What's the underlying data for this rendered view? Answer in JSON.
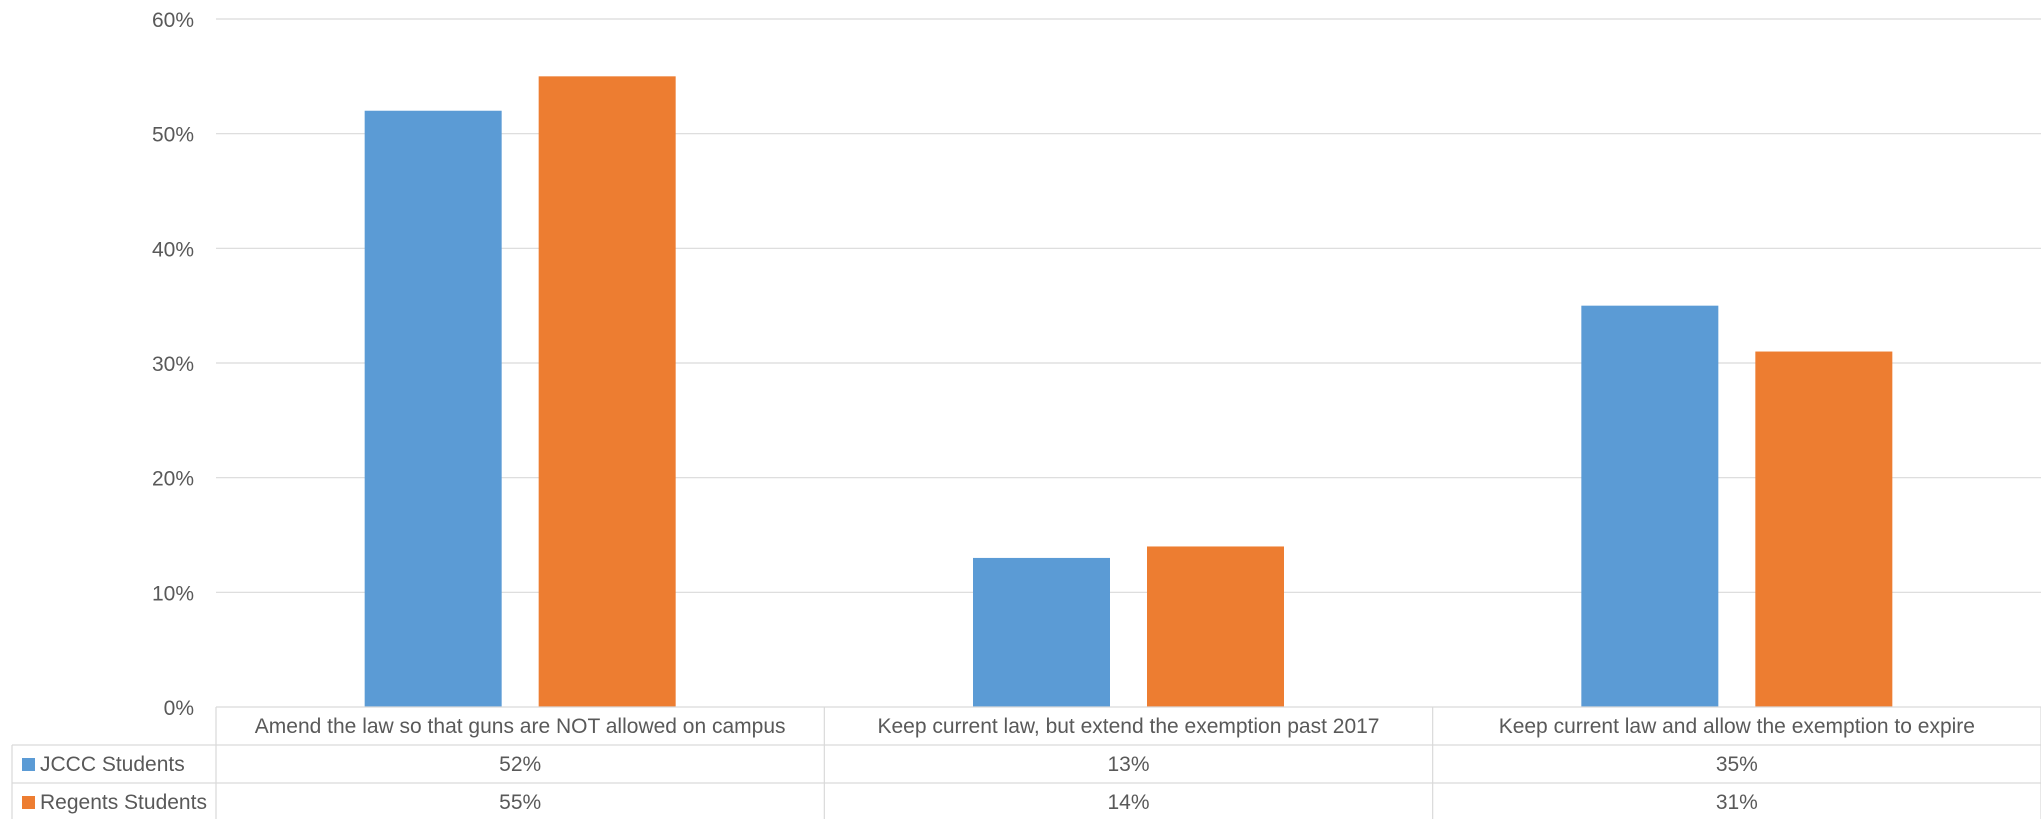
{
  "chart_data": {
    "type": "bar",
    "title": "",
    "xlabel": "",
    "ylabel": "",
    "ylim": [
      0,
      60
    ],
    "yticks": [
      "0%",
      "10%",
      "20%",
      "30%",
      "40%",
      "50%",
      "60%"
    ],
    "categories": [
      "Amend the law so that guns are NOT allowed on  campus",
      "Keep current law, but extend the exemption past 2017",
      "Keep current law and allow the exemption to expire"
    ],
    "series": [
      {
        "name": "JCCC Students",
        "color": "#5B9BD5",
        "values": [
          52,
          13,
          35
        ],
        "labels": [
          "52%",
          "13%",
          "35%"
        ]
      },
      {
        "name": "Regents Students",
        "color": "#ED7D31",
        "values": [
          55,
          14,
          31
        ],
        "labels": [
          "55%",
          "14%",
          "31%"
        ]
      }
    ],
    "grid": true,
    "legend": "data-table"
  }
}
